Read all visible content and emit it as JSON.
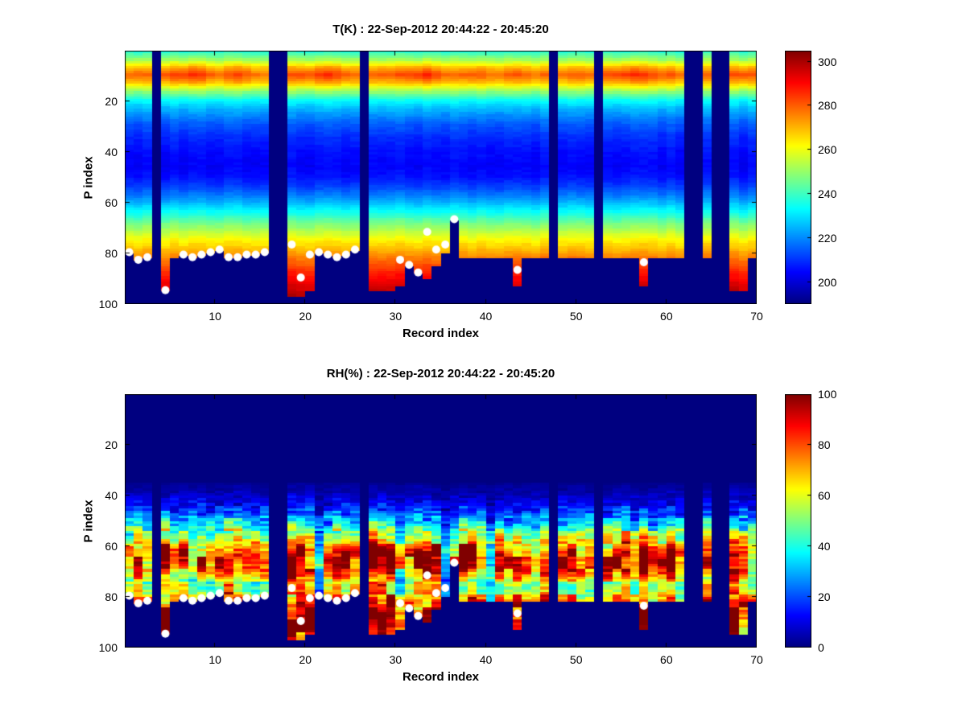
{
  "records": {
    "count": 70,
    "missing": [
      4,
      17,
      18,
      27,
      48,
      53,
      63,
      64,
      66,
      67
    ],
    "data_bottom": [
      80,
      83,
      82,
      null,
      95,
      82,
      81,
      82,
      81,
      80,
      79,
      82,
      82,
      81,
      81,
      80,
      null,
      null,
      97,
      97,
      95,
      80,
      81,
      82,
      81,
      79,
      null,
      95,
      95,
      95,
      93,
      85,
      88,
      90,
      85,
      80,
      67,
      82,
      82,
      82,
      82,
      82,
      82,
      93,
      82,
      82,
      82,
      null,
      82,
      82,
      82,
      82,
      null,
      82,
      82,
      82,
      82,
      93,
      82,
      82,
      82,
      82,
      null,
      null,
      82,
      null,
      null,
      95,
      95,
      82
    ],
    "surface_markers": [
      [
        1,
        80
      ],
      [
        2,
        83
      ],
      [
        3,
        82
      ],
      [
        5,
        95
      ],
      [
        7,
        81
      ],
      [
        8,
        82
      ],
      [
        9,
        81
      ],
      [
        10,
        80
      ],
      [
        11,
        79
      ],
      [
        12,
        82
      ],
      [
        13,
        82
      ],
      [
        14,
        81
      ],
      [
        15,
        81
      ],
      [
        16,
        80
      ],
      [
        19,
        77
      ],
      [
        20,
        90
      ],
      [
        21,
        81
      ],
      [
        22,
        80
      ],
      [
        23,
        81
      ],
      [
        24,
        82
      ],
      [
        25,
        81
      ],
      [
        26,
        79
      ],
      [
        31,
        83
      ],
      [
        32,
        85
      ],
      [
        33,
        88
      ],
      [
        34,
        72
      ],
      [
        35,
        79
      ],
      [
        36,
        77
      ],
      [
        37,
        67
      ],
      [
        44,
        87
      ],
      [
        58,
        84
      ]
    ],
    "marker_color": "#ffffff"
  },
  "chart_data": [
    {
      "type": "heatmap",
      "quantity": "temperature",
      "title": "T(K) : 22-Sep-2012 20:44:22 - 20:45:20",
      "xlabel": "Record index",
      "ylabel": "P index",
      "x_range": [
        1,
        70
      ],
      "y_range": [
        1,
        100
      ],
      "y_axis": "reversed",
      "x_ticks": [
        10,
        20,
        30,
        40,
        50,
        60,
        70
      ],
      "y_ticks": [
        20,
        40,
        60,
        80,
        100
      ],
      "colormap": "jet",
      "colorbar": {
        "min": 190,
        "max": 305,
        "ticks": [
          200,
          220,
          240,
          260,
          280,
          300
        ]
      },
      "profile_points": [
        [
          1,
          238
        ],
        [
          4,
          250
        ],
        [
          7,
          266
        ],
        [
          10,
          276
        ],
        [
          13,
          267
        ],
        [
          16,
          252
        ],
        [
          20,
          234
        ],
        [
          25,
          222
        ],
        [
          30,
          214
        ],
        [
          35,
          209
        ],
        [
          40,
          206
        ],
        [
          46,
          204
        ],
        [
          50,
          206
        ],
        [
          55,
          213
        ],
        [
          60,
          224
        ],
        [
          64,
          234
        ],
        [
          68,
          245
        ],
        [
          72,
          255
        ],
        [
          76,
          264
        ],
        [
          80,
          272
        ],
        [
          84,
          280
        ],
        [
          88,
          287
        ],
        [
          92,
          293
        ],
        [
          96,
          298
        ],
        [
          100,
          302
        ]
      ],
      "warm_band_center_p": 10,
      "warm_band_anomaly": [
        3,
        5,
        2,
        0,
        6,
        7,
        9,
        10,
        8,
        5,
        3,
        5,
        7,
        6,
        3,
        2,
        0,
        0,
        5,
        7,
        6,
        8,
        9,
        7,
        5,
        3,
        0,
        3,
        5,
        4,
        5,
        7,
        9,
        10,
        7,
        4,
        2,
        3,
        5,
        4,
        3,
        2,
        4,
        5,
        3,
        2,
        2,
        0,
        2,
        3,
        4,
        3,
        5,
        6,
        7,
        8,
        9,
        8,
        6,
        5,
        4,
        3,
        0,
        0,
        2,
        0,
        0,
        5,
        6,
        4
      ]
    },
    {
      "type": "heatmap",
      "quantity": "relative_humidity",
      "title": "RH(%) : 22-Sep-2012 20:44:22 - 20:45:20",
      "xlabel": "Record index",
      "ylabel": "P index",
      "x_range": [
        1,
        70
      ],
      "y_range": [
        1,
        100
      ],
      "y_axis": "reversed",
      "x_ticks": [
        10,
        20,
        30,
        40,
        50,
        60,
        70
      ],
      "y_ticks": [
        20,
        40,
        60,
        80,
        100
      ],
      "colormap": "jet",
      "colorbar": {
        "min": 0,
        "max": 100,
        "ticks": [
          0,
          20,
          40,
          60,
          80,
          100
        ]
      },
      "profile_points": [
        [
          1,
          0
        ],
        [
          30,
          0
        ],
        [
          36,
          2
        ],
        [
          40,
          6
        ],
        [
          44,
          12
        ],
        [
          48,
          22
        ],
        [
          52,
          38
        ],
        [
          56,
          58
        ],
        [
          60,
          74
        ],
        [
          63,
          85
        ],
        [
          66,
          90
        ],
        [
          69,
          86
        ],
        [
          72,
          72
        ],
        [
          75,
          58
        ],
        [
          78,
          62
        ],
        [
          81,
          75
        ],
        [
          84,
          85
        ],
        [
          87,
          92
        ],
        [
          90,
          95
        ],
        [
          93,
          88
        ],
        [
          96,
          75
        ],
        [
          100,
          60
        ]
      ],
      "column_scale": [
        0.9,
        1.0,
        0.85,
        0,
        1.1,
        0.95,
        1.05,
        0.9,
        1.0,
        0.8,
        0.95,
        1.1,
        1.0,
        0.9,
        0.85,
        1.0,
        0,
        0,
        1.15,
        1.2,
        1.1,
        0.45,
        0.9,
        1.05,
        1.1,
        0.95,
        0,
        1.15,
        1.2,
        1.1,
        0.7,
        0.9,
        1.0,
        1.1,
        0.95,
        0.35,
        0.8,
        1.05,
        1.1,
        0.9,
        0.5,
        1.0,
        0.95,
        1.1,
        0.85,
        0.9,
        1.0,
        0,
        0.95,
        1.05,
        0.9,
        1.0,
        0,
        0.95,
        1.05,
        1.1,
        0.9,
        1.0,
        0.85,
        0.95,
        1.05,
        0.9,
        0,
        0,
        1.0,
        0,
        0,
        1.1,
        0.95,
        0.8
      ]
    }
  ]
}
